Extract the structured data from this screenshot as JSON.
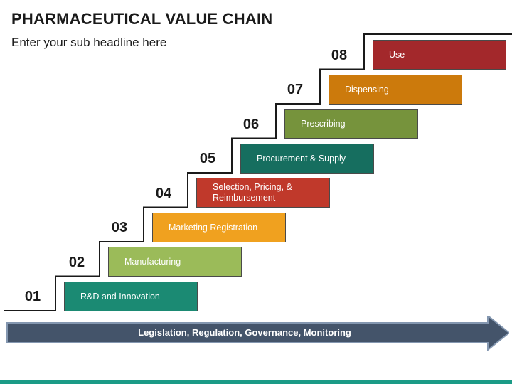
{
  "header": {
    "title": "PHARMACEUTICAL VALUE CHAIN",
    "subtitle": "Enter your sub headline here"
  },
  "steps": [
    {
      "number": "01",
      "label": "R&D and Innovation",
      "color": "#1b8a73"
    },
    {
      "number": "02",
      "label": "Manufacturing",
      "color": "#9bbb59"
    },
    {
      "number": "03",
      "label": "Marketing Registration",
      "color": "#f0a11f"
    },
    {
      "number": "04",
      "label": "Selection, Pricing, & Reimbursement",
      "color": "#c0392b"
    },
    {
      "number": "05",
      "label": "Procurement & Supply",
      "color": "#166e5f"
    },
    {
      "number": "06",
      "label": "Prescribing",
      "color": "#76933c"
    },
    {
      "number": "07",
      "label": "Dispensing",
      "color": "#cc7a0c"
    },
    {
      "number": "08",
      "label": "Use",
      "color": "#a3282b"
    }
  ],
  "arrow": {
    "label": "Legislation, Regulation, Governance, Monitoring",
    "color": "#44546a"
  },
  "accent": "#1b9b86"
}
